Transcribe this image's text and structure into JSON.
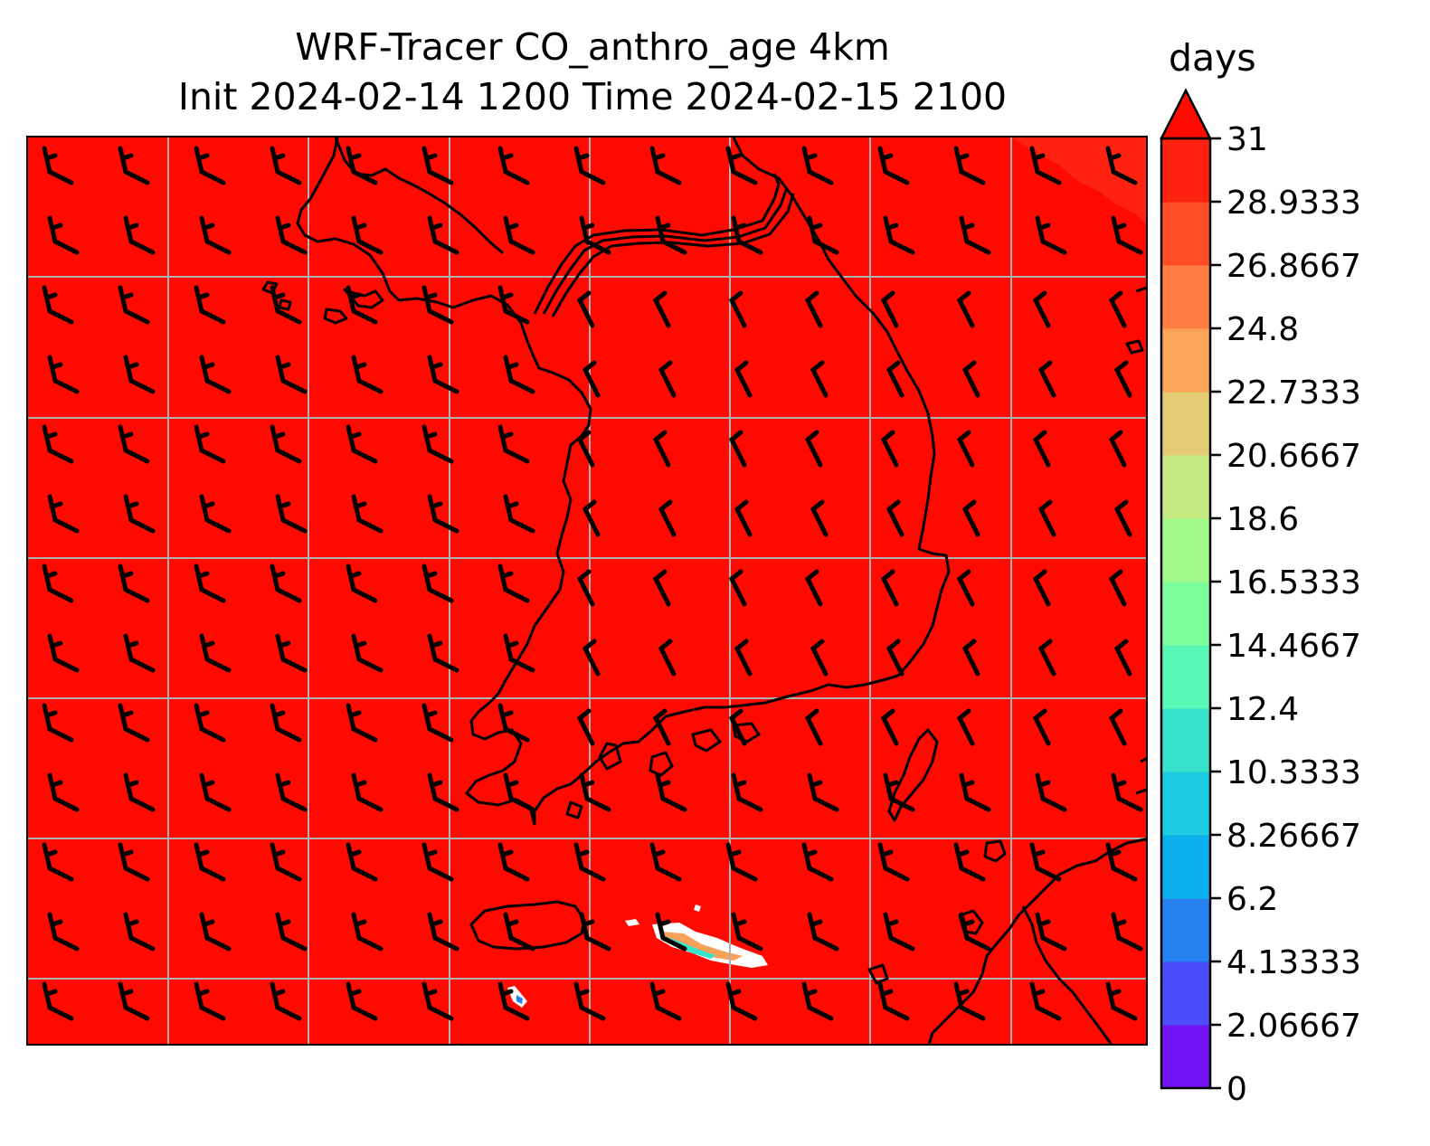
{
  "title": {
    "line1": "WRF-Tracer CO_anthro_age 4km",
    "line2": "Init 2024-02-14 1200 Time 2024-02-15 2100"
  },
  "colorbar": {
    "unit": "days",
    "extend": "max",
    "min": 0,
    "max": 31,
    "tick_labels": [
      "0",
      "2.06667",
      "4.13333",
      "6.2",
      "8.26667",
      "10.3333",
      "12.4",
      "14.4667",
      "16.5333",
      "18.6",
      "20.6667",
      "22.7333",
      "24.8",
      "26.8667",
      "28.9333",
      "31"
    ],
    "level_colors": [
      "#7413f6",
      "#4b4cfb",
      "#2580f0",
      "#0aaeea",
      "#1ccbe0",
      "#37e3cb",
      "#5af8b6",
      "#7dfe9d",
      "#a1fa8a",
      "#c7ea84",
      "#e5cc74",
      "#fca659",
      "#ff7c42",
      "#ff4e25",
      "#ff2210"
    ],
    "extend_color": "#ff0a00"
  },
  "map": {
    "field_color": "#ff0a00",
    "gridline_color": "#b0b0b0",
    "coastline_color": "#000000",
    "wind_barb_color": "#000000"
  }
}
